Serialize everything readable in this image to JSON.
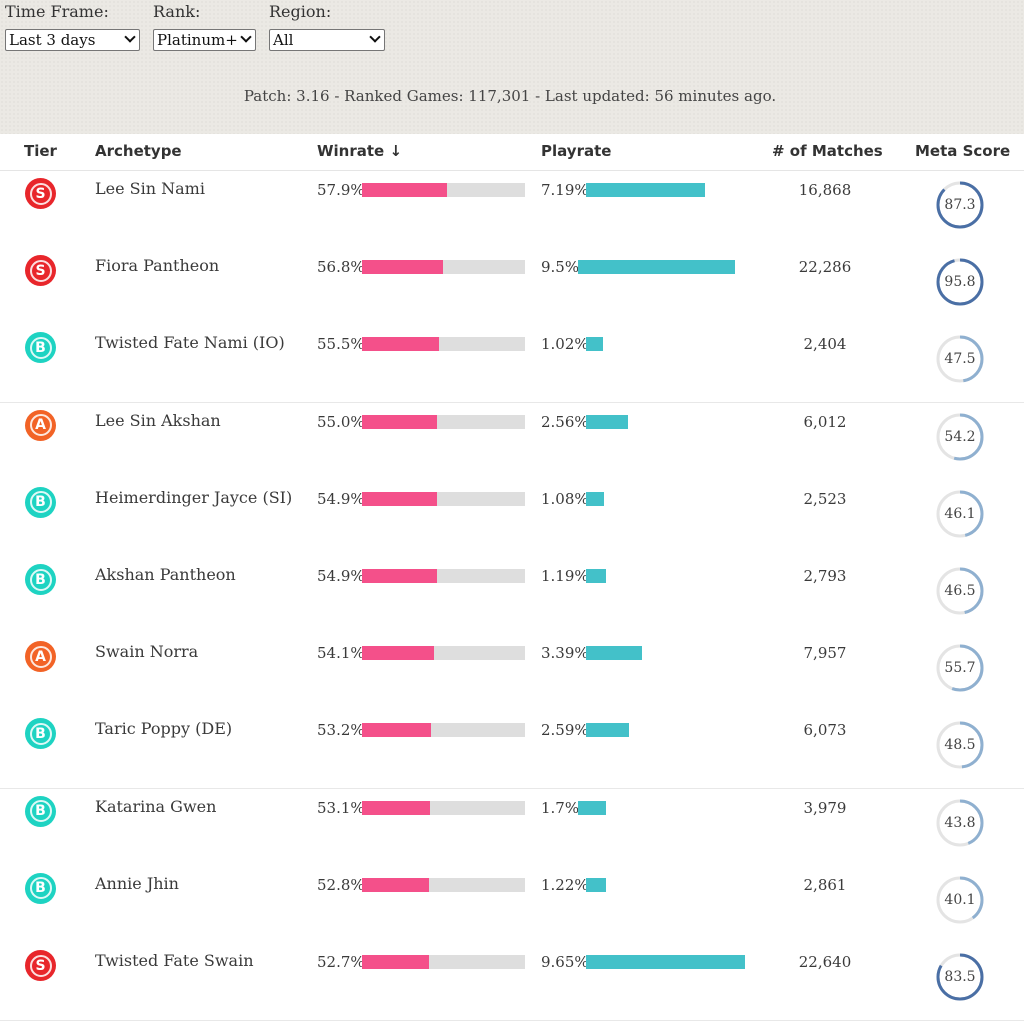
{
  "filters": {
    "time_frame": {
      "label": "Time Frame:",
      "value": "Last 3 days"
    },
    "rank": {
      "label": "Rank:",
      "value": "Platinum+"
    },
    "region": {
      "label": "Region:",
      "value": "All"
    }
  },
  "summary": "Patch: 3.16 - Ranked Games: 117,301 - Last updated: 56 minutes ago.",
  "table": {
    "headers": {
      "tier": "Tier",
      "archetype": "Archetype",
      "winrate": "Winrate ↓",
      "playrate": "Playrate",
      "matches": "# of Matches",
      "meta_score": "Meta Score"
    },
    "rows": [
      {
        "tier": "S",
        "archetype": "Lee Sin Nami",
        "winrate": "57.9%",
        "winrate_fraction": 0.579,
        "playrate": "7.19%",
        "playrate_pct": 7.19,
        "matches": "16,868",
        "meta_score": "87.3",
        "meta_fraction": 0.873
      },
      {
        "tier": "S",
        "archetype": "Fiora Pantheon",
        "winrate": "56.8%",
        "winrate_fraction": 0.568,
        "playrate": "9.5%",
        "playrate_pct": 9.5,
        "matches": "22,286",
        "meta_score": "95.8",
        "meta_fraction": 0.958
      },
      {
        "tier": "B",
        "archetype": "Twisted Fate Nami (IO)",
        "winrate": "55.5%",
        "winrate_fraction": 0.555,
        "playrate": "1.02%",
        "playrate_pct": 1.02,
        "matches": "2,404",
        "meta_score": "47.5",
        "meta_fraction": 0.475
      },
      {
        "tier": "A",
        "archetype": "Lee Sin Akshan",
        "winrate": "55.0%",
        "winrate_fraction": 0.55,
        "playrate": "2.56%",
        "playrate_pct": 2.56,
        "matches": "6,012",
        "meta_score": "54.2",
        "meta_fraction": 0.542
      },
      {
        "tier": "B",
        "archetype": "Heimerdinger Jayce (SI)",
        "winrate": "54.9%",
        "winrate_fraction": 0.549,
        "playrate": "1.08%",
        "playrate_pct": 1.08,
        "matches": "2,523",
        "meta_score": "46.1",
        "meta_fraction": 0.461
      },
      {
        "tier": "B",
        "archetype": "Akshan Pantheon",
        "winrate": "54.9%",
        "winrate_fraction": 0.549,
        "playrate": "1.19%",
        "playrate_pct": 1.19,
        "matches": "2,793",
        "meta_score": "46.5",
        "meta_fraction": 0.465
      },
      {
        "tier": "A",
        "archetype": "Swain Norra",
        "winrate": "54.1%",
        "winrate_fraction": 0.541,
        "playrate": "3.39%",
        "playrate_pct": 3.39,
        "matches": "7,957",
        "meta_score": "55.7",
        "meta_fraction": 0.557
      },
      {
        "tier": "B",
        "archetype": "Taric Poppy (DE)",
        "winrate": "53.2%",
        "winrate_fraction": 0.532,
        "playrate": "2.59%",
        "playrate_pct": 2.59,
        "matches": "6,073",
        "meta_score": "48.5",
        "meta_fraction": 0.485
      },
      {
        "tier": "B",
        "archetype": "Katarina Gwen",
        "winrate": "53.1%",
        "winrate_fraction": 0.531,
        "playrate": "1.7%",
        "playrate_pct": 1.7,
        "matches": "3,979",
        "meta_score": "43.8",
        "meta_fraction": 0.438
      },
      {
        "tier": "B",
        "archetype": "Annie Jhin",
        "winrate": "52.8%",
        "winrate_fraction": 0.528,
        "playrate": "1.22%",
        "playrate_pct": 1.22,
        "matches": "2,861",
        "meta_score": "40.1",
        "meta_fraction": 0.401
      },
      {
        "tier": "S",
        "archetype": "Twisted Fate Swain",
        "winrate": "52.7%",
        "winrate_fraction": 0.527,
        "playrate": "9.65%",
        "playrate_pct": 9.65,
        "matches": "22,640",
        "meta_score": "83.5",
        "meta_fraction": 0.835
      }
    ]
  },
  "colors": {
    "winrate_bar": "#f4508a",
    "playrate_bar": "#43c1c9",
    "bar_track": "#dedede",
    "tier_S": "#e8262b",
    "tier_A": "#f26326",
    "tier_B": "#1ed3c2",
    "ring_track": "#e4e4e4",
    "ring_high": "#4a6fa5",
    "ring_low": "#8fb0d0"
  }
}
